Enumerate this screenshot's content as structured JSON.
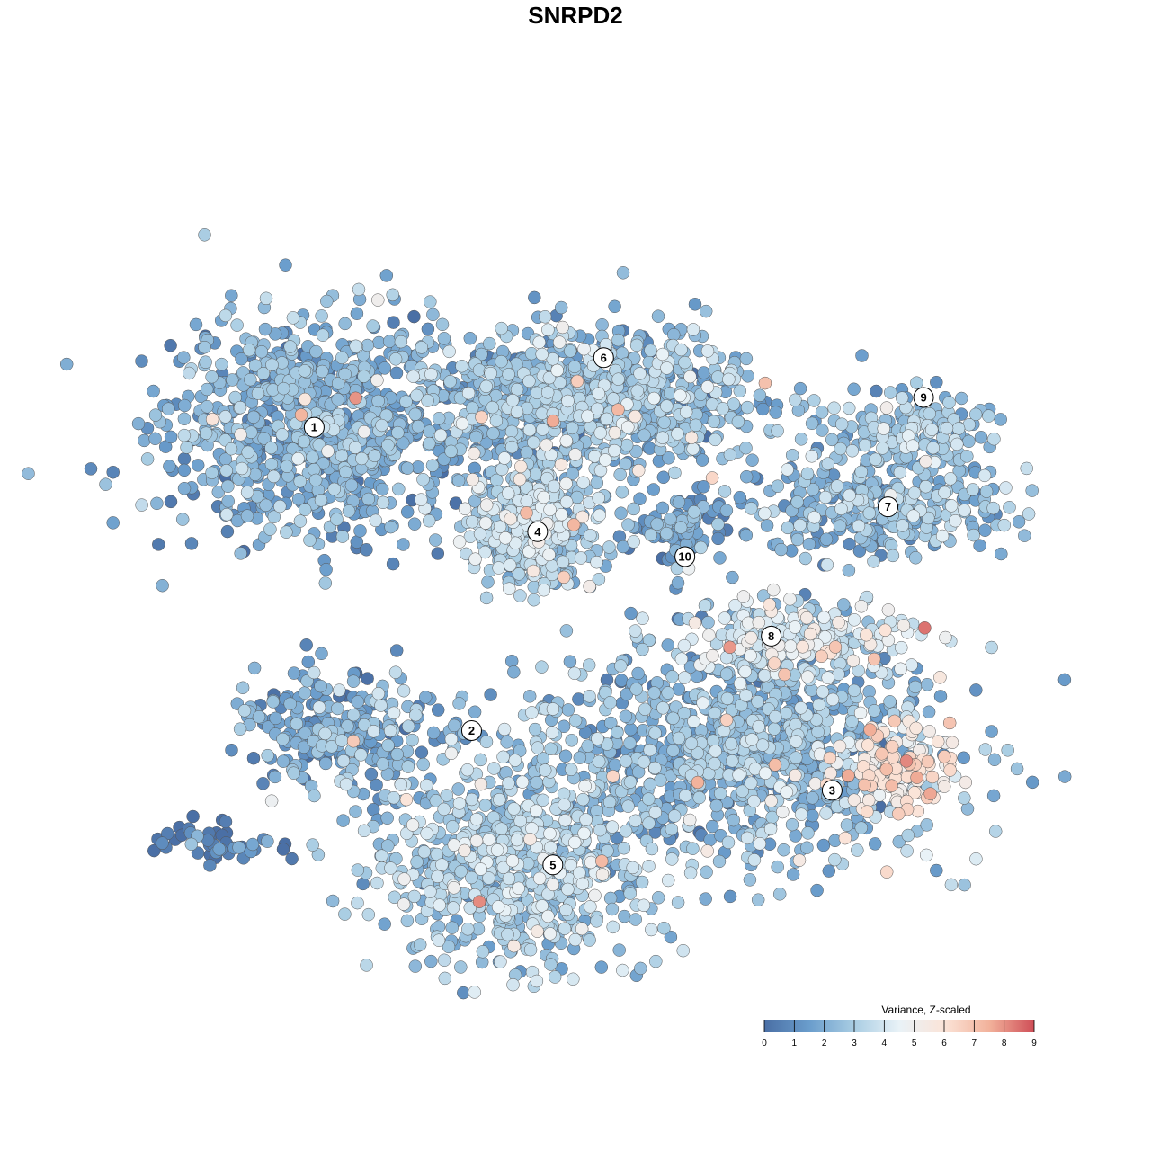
{
  "chart_data": {
    "type": "scatter",
    "title": "SNRPD2",
    "color_scale": {
      "title": "Variance, Z-scaled",
      "min": 0,
      "max": 9,
      "ticks": [
        "0",
        "1",
        "2",
        "3",
        "4",
        "5",
        "6",
        "7",
        "8",
        "9"
      ],
      "stops": [
        "#4a6fa5",
        "#6a9dcc",
        "#a9cde3",
        "#e9f2f7",
        "#fbe4d8",
        "#f2b29b",
        "#cf4e57"
      ]
    },
    "clusters": [
      {
        "label": "1",
        "cx": -55,
        "cy": 28,
        "sx": 14,
        "sy": 11,
        "mean": 1.9,
        "n": 900
      },
      {
        "label": "6",
        "cx": 0,
        "cy": 34,
        "sx": 16,
        "sy": 7,
        "mean": 2.4,
        "n": 900
      },
      {
        "label": "9",
        "cx": 62,
        "cy": 26,
        "sx": 9,
        "sy": 4,
        "mean": 2.7,
        "n": 170
      },
      {
        "label": "7",
        "cx": 55,
        "cy": 12,
        "sx": 13,
        "sy": 5,
        "mean": 2.3,
        "n": 300
      },
      {
        "label": "4",
        "cx": -12,
        "cy": 8,
        "sx": 6,
        "sy": 6,
        "mean": 3.0,
        "n": 420
      },
      {
        "label": "10",
        "cx": 16,
        "cy": 8,
        "sx": 5,
        "sy": 4,
        "mean": 1.6,
        "n": 90
      },
      {
        "label": "8",
        "cx": 42,
        "cy": -14,
        "sx": 11,
        "sy": 4,
        "mean": 3.8,
        "n": 220
      },
      {
        "label": "2",
        "cx": -50,
        "cy": -33,
        "sx": 9,
        "sy": 6,
        "mean": 1.9,
        "n": 260
      },
      {
        "label": "5",
        "cx": -16,
        "cy": -60,
        "sx": 13,
        "sy": 11,
        "mean": 2.9,
        "n": 750
      },
      {
        "label": "3",
        "cx": 30,
        "cy": -36,
        "sx": 19,
        "sy": 11,
        "mean": 2.3,
        "n": 1000
      },
      {
        "label": "",
        "cx": 60,
        "cy": -41,
        "sx": 6,
        "sy": 4,
        "mean": 5.6,
        "n": 130
      },
      {
        "label": "",
        "cx": -73,
        "cy": -55,
        "sx": 7,
        "sy": 2,
        "mean": 0.7,
        "n": 45
      }
    ],
    "label_positions": [
      {
        "label": "1",
        "x": -55,
        "y": 28
      },
      {
        "label": "6",
        "x": 2,
        "y": 42
      },
      {
        "label": "9",
        "x": 65,
        "y": 34
      },
      {
        "label": "7",
        "x": 58,
        "y": 12
      },
      {
        "label": "4",
        "x": -11,
        "y": 7
      },
      {
        "label": "10",
        "x": 18,
        "y": 2
      },
      {
        "label": "8",
        "x": 35,
        "y": -14
      },
      {
        "label": "2",
        "x": -24,
        "y": -33
      },
      {
        "label": "5",
        "x": -8,
        "y": -60
      },
      {
        "label": "3",
        "x": 47,
        "y": -45
      }
    ],
    "xlim": [
      -85,
      85
    ],
    "ylim": [
      -85,
      85
    ],
    "legend_position": "bottom-right",
    "axes_visible": false
  }
}
